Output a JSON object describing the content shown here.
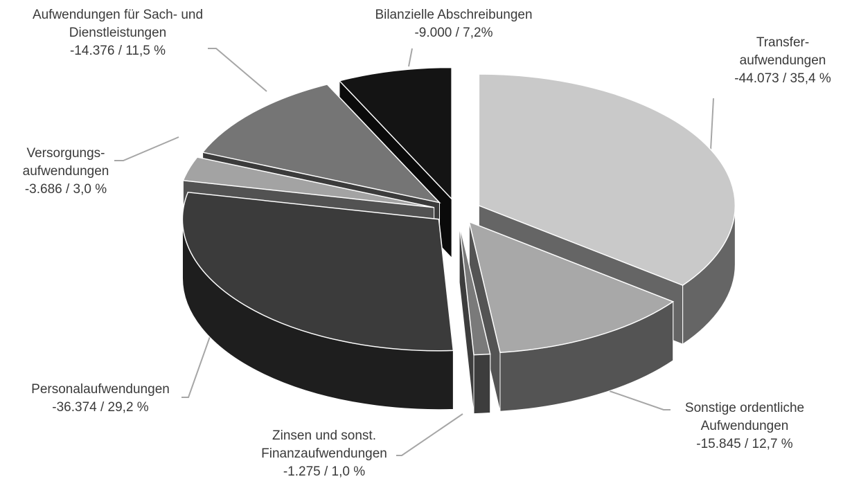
{
  "chart_data": {
    "type": "pie3d",
    "categories": [
      "Transfer-\naufwendungen",
      "Sonstige ordentliche\nAufwendungen",
      "Zinsen und sonst.\nFinanzaufwendungen",
      "Personalaufwendungen",
      "Versorgungs-\naufwendungen",
      "Aufwendungen für Sach- und\nDienstleistungen",
      "Bilanzielle Abschreibungen"
    ],
    "values": [
      -44073,
      -15845,
      -1275,
      -36374,
      -3686,
      -14376,
      -9000
    ],
    "value_labels": [
      "-44.073 / 35,4 %",
      "-15.845 / 12,7 %",
      "-1.275 / 1,0 %",
      "-36.374 / 29,2 %",
      "-3.686 / 3,0 %",
      "-14.376 / 11,5 %",
      "-9.000 / 7,2%"
    ],
    "colors": [
      "#c9c9c9",
      "#a8a8a8",
      "#7a7a7a",
      "#3b3b3b",
      "#a3a3a3",
      "#757575",
      "#141414"
    ]
  }
}
